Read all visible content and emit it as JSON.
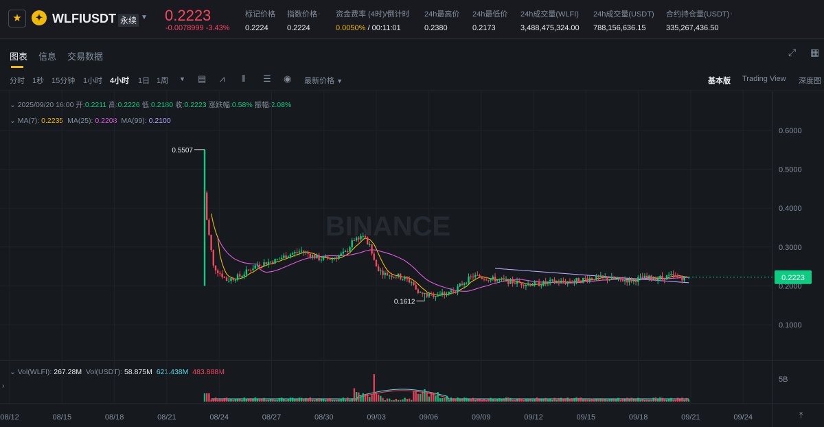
{
  "header": {
    "symbol": "WLFIUSDT",
    "contract_type": "永续",
    "price": "0.2223",
    "change": "-0.0078999 -3.43%",
    "stats": [
      {
        "label": "标记价格",
        "value": "0.2224"
      },
      {
        "label": "指数价格",
        "value": "0.2224"
      },
      {
        "label": "资金费率 (4时)/倒计时",
        "value_rate": "0.0050%",
        "value_countdown": " / 00:11:01"
      },
      {
        "label": "24h最高价",
        "value": "0.2380"
      },
      {
        "label": "24h最低价",
        "value": "0.2173"
      },
      {
        "label": "24h成交量(WLFI)",
        "value": "3,488,475,324.00"
      },
      {
        "label": "24h成交量(USDT)",
        "value": "788,156,636.15"
      },
      {
        "label": "合约持仓量(USDT)",
        "value": "335,267,436.50"
      }
    ]
  },
  "tabs": [
    "图表",
    "信息",
    "交易数据"
  ],
  "toolbar": {
    "timeframes": [
      "分时",
      "1秒",
      "15分钟",
      "1小时",
      "4小时",
      "1日",
      "1周"
    ],
    "active_timeframe": "4小时",
    "price_type": "最新价格",
    "views": [
      "基本版",
      "Trading View",
      "深度图"
    ]
  },
  "legend": {
    "date": "2025/09/20 16:00",
    "open_label": "开:",
    "open": "0.2211",
    "high_label": "高:",
    "high": "0.2226",
    "low_label": "低:",
    "low": "0.2180",
    "close_label": "收:",
    "close": "0.2223",
    "chg_label": "涨跌幅:",
    "chg": "0.58%",
    "amp_label": "振幅:",
    "amp": "2.08%",
    "ma7_label": "MA(7):",
    "ma7": "0.2235",
    "ma25_label": "MA(25):",
    "ma25": "0.2208",
    "ma99_label": "MA(99):",
    "ma99": "0.2100",
    "vol_wlfi_label": "Vol(WLFI):",
    "vol_wlfi": "267.28M",
    "vol_usdt_label": "Vol(USDT):",
    "vol_usdt": "58.875M",
    "vol_ma1": "621.438M",
    "vol_ma2": "483.888M"
  },
  "watermark": "BINANCE",
  "chart_data": {
    "type": "candlestick",
    "y_ticks": [
      "0.6000",
      "0.5000",
      "0.4000",
      "0.3000",
      "0.2000",
      "0.1000"
    ],
    "y_tick_values": [
      0.6,
      0.5,
      0.4,
      0.3,
      0.2,
      0.1
    ],
    "vol_tick": "5B",
    "x_ticks": [
      "08/12",
      "08/15",
      "08/18",
      "08/21",
      "08/24",
      "08/27",
      "08/30",
      "09/03",
      "09/06",
      "09/09",
      "09/12",
      "09/15",
      "09/18",
      "09/21",
      "09/24"
    ],
    "current_price": "0.2223",
    "annotations": {
      "high": "0.5507",
      "low": "0.1612"
    },
    "colors": {
      "up": "#0ecb81",
      "down": "#f6465d",
      "ma7": "#f0b90b",
      "ma25": "#e25ce0",
      "ma99": "#b6a3ff"
    },
    "price_path": [
      [
        0,
        0.2
      ],
      [
        1,
        0.37
      ],
      [
        4,
        0.25
      ],
      [
        10,
        0.215
      ],
      [
        16,
        0.225
      ],
      [
        24,
        0.255
      ],
      [
        32,
        0.265
      ],
      [
        38,
        0.28
      ],
      [
        44,
        0.29
      ],
      [
        48,
        0.28
      ],
      [
        52,
        0.27
      ],
      [
        58,
        0.27
      ],
      [
        64,
        0.285
      ],
      [
        68,
        0.32
      ],
      [
        72,
        0.33
      ],
      [
        75,
        0.3
      ],
      [
        78,
        0.25
      ],
      [
        82,
        0.23
      ],
      [
        88,
        0.225
      ],
      [
        94,
        0.21
      ],
      [
        98,
        0.18
      ],
      [
        102,
        0.175
      ],
      [
        108,
        0.18
      ],
      [
        114,
        0.19
      ],
      [
        118,
        0.21
      ],
      [
        122,
        0.225
      ],
      [
        128,
        0.22
      ],
      [
        134,
        0.215
      ],
      [
        140,
        0.21
      ],
      [
        146,
        0.205
      ],
      [
        152,
        0.205
      ],
      [
        158,
        0.21
      ],
      [
        164,
        0.21
      ],
      [
        170,
        0.215
      ],
      [
        176,
        0.22
      ],
      [
        182,
        0.22
      ],
      [
        188,
        0.215
      ],
      [
        194,
        0.215
      ],
      [
        200,
        0.22
      ],
      [
        206,
        0.22
      ],
      [
        212,
        0.225
      ],
      [
        218,
        0.22
      ],
      [
        220,
        0.2223
      ]
    ],
    "candle_count": 221
  }
}
